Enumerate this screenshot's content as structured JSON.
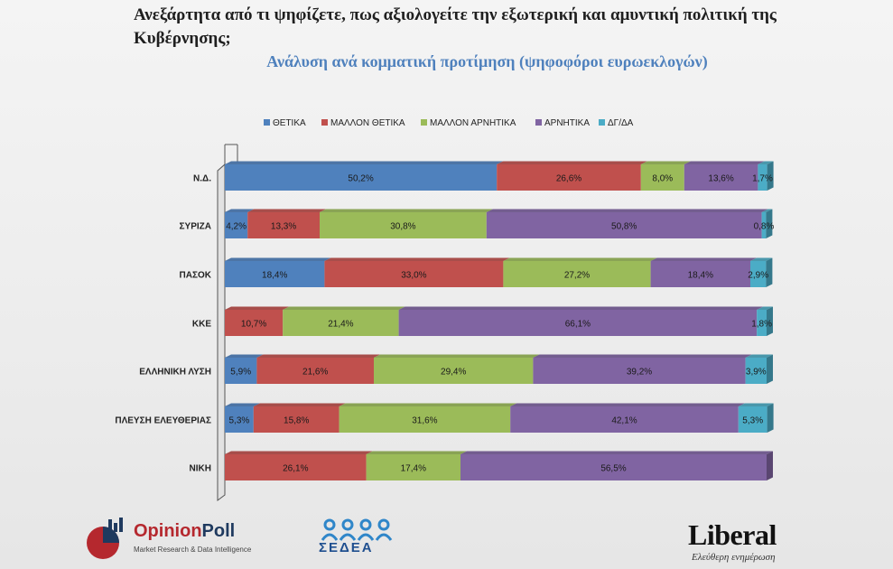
{
  "title": "Ανεξάρτητα από τι ψηφίζετε, πως αξιολογείτε την εξωτερική και αμυντική πολιτική της Κυβέρνησης;",
  "subtitle": "Ανάλυση ανά κομματική προτίμηση (ψηφοφόροι ευρωεκλογών)",
  "chart_data": {
    "type": "bar",
    "orientation": "horizontal",
    "stacked": "100%",
    "legend_position": "top",
    "categories": [
      "Ν.Δ.",
      "ΣΥΡΙΖΑ",
      "ΠΑΣΟΚ",
      "ΚΚΕ",
      "ΕΛΛΗΝΙΚΗ ΛΥΣΗ",
      "ΠΛΕΥΣΗ ΕΛΕΥΘΕΡΙΑΣ",
      "ΝΙΚΗ"
    ],
    "series": [
      {
        "name": "ΘΕΤΙΚΑ",
        "color": "#4f81bd",
        "values": [
          50.2,
          4.2,
          18.4,
          0,
          5.9,
          5.3,
          0
        ]
      },
      {
        "name": "ΜΑΛΛΟΝ ΘΕΤΙΚΑ",
        "color": "#c0504d",
        "values": [
          26.6,
          13.3,
          33.0,
          10.7,
          21.6,
          15.8,
          26.1
        ]
      },
      {
        "name": "ΜΑΛΛΟΝ ΑΡΝΗΤΙΚΑ",
        "color": "#9bbb59",
        "values": [
          8.0,
          30.8,
          27.2,
          21.4,
          29.4,
          31.6,
          17.4
        ]
      },
      {
        "name": "ΑΡΝΗΤΙΚΑ",
        "color": "#8064a2",
        "values": [
          13.6,
          50.8,
          18.4,
          66.1,
          39.2,
          42.1,
          56.5
        ]
      },
      {
        "name": "ΔΓ/ΔΑ",
        "color": "#4bacc6",
        "values": [
          1.7,
          0.8,
          2.9,
          1.8,
          3.9,
          5.3,
          0
        ]
      }
    ],
    "value_labels": [
      [
        "50,2%",
        "4,2%",
        "18,4%",
        "",
        "5,9%",
        "5,3%",
        ""
      ],
      [
        "26,6%",
        "13,3%",
        "33,0%",
        "10,7%",
        "21,6%",
        "15,8%",
        "26,1%"
      ],
      [
        "8,0%",
        "30,8%",
        "27,2%",
        "21,4%",
        "29,4%",
        "31,6%",
        "17,4%"
      ],
      [
        "13,6%",
        "50,8%",
        "18,4%",
        "66,1%",
        "39,2%",
        "42,1%",
        "56,5%"
      ],
      [
        "1,7%",
        "0,8%",
        "2,9%",
        "1,8%",
        "3,9%",
        "5,3%",
        ""
      ]
    ]
  },
  "logos": {
    "opinionpoll_part1": "Opinion",
    "opinionpoll_part2": "Poll",
    "opinionpoll_tagline": "Market Research & Data Intelligence",
    "sedea": "ΣΕΔΕΑ",
    "liberal": "Liberal",
    "liberal_tagline": "Ελεύθερη ενημέρωση"
  }
}
